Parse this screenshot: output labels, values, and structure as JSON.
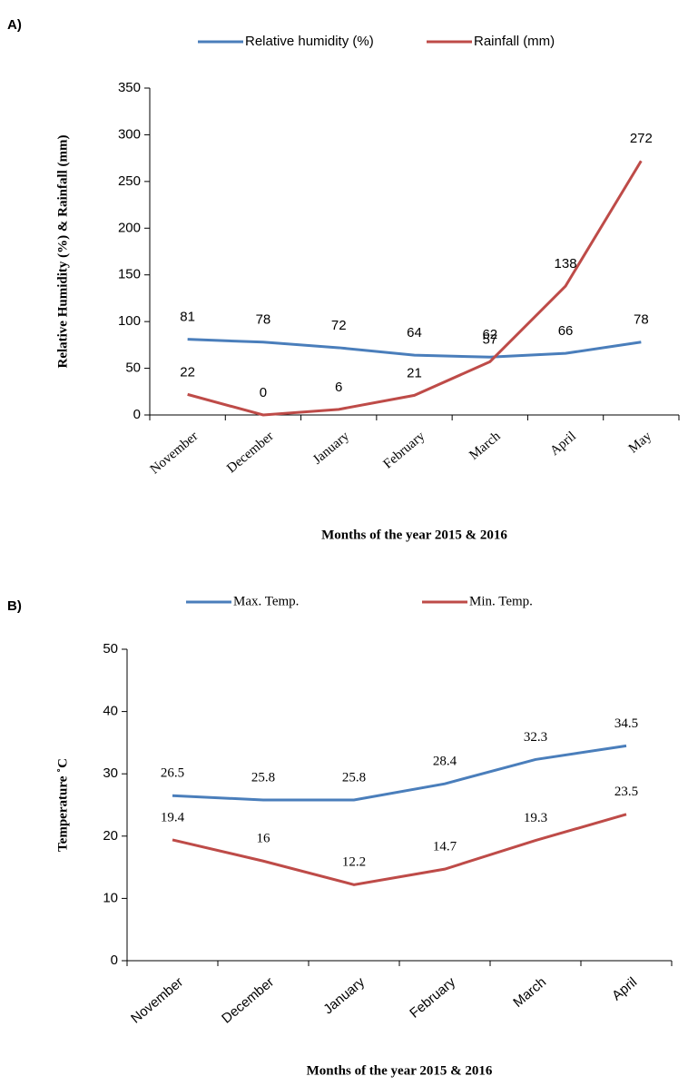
{
  "chart_data": [
    {
      "type": "line",
      "panel": "A)",
      "ylabel": "Relative Humidity (%) & Rainfall (mm)",
      "xlabel": "Months of the year 2015 & 2016",
      "categories": [
        "November",
        "December",
        "January",
        "February",
        "March",
        "April",
        "May"
      ],
      "series": [
        {
          "name": "Relative humidity (%)",
          "color": "#4a7ebb",
          "values": [
            81,
            78,
            72,
            64,
            62,
            66,
            78
          ]
        },
        {
          "name": "Rainfall (mm)",
          "color": "#be4b48",
          "values": [
            22,
            0,
            6,
            21,
            57,
            138,
            272
          ]
        }
      ],
      "ylim": [
        0,
        350
      ],
      "yticks": [
        0,
        50,
        100,
        150,
        200,
        250,
        300,
        350
      ],
      "legend": "top"
    },
    {
      "type": "line",
      "panel": "B)",
      "ylabel": "Temperature  ˚C",
      "xlabel": "Months of the year 2015 & 2016",
      "categories": [
        "November",
        "December",
        "January",
        "February",
        "March",
        "April"
      ],
      "series": [
        {
          "name": "Max. Temp.",
          "color": "#4a7ebb",
          "values": [
            26.5,
            25.8,
            25.8,
            28.4,
            32.3,
            34.5
          ]
        },
        {
          "name": "Min. Temp.",
          "color": "#be4b48",
          "values": [
            19.4,
            16,
            12.2,
            14.7,
            19.3,
            23.5
          ]
        }
      ],
      "ylim": [
        0,
        50
      ],
      "yticks": [
        0,
        10,
        20,
        30,
        40,
        50
      ],
      "legend": "top"
    }
  ]
}
